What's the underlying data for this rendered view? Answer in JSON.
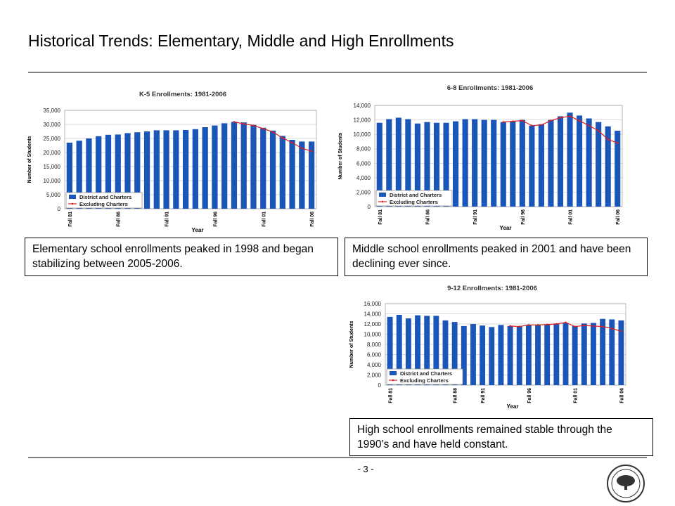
{
  "title": "Historical Trends: Elementary, Middle and High Enrollments",
  "captions": [
    "Elementary school enrollments peaked in 1998 and began stabilizing between 2005-2006.",
    "Middle school enrollments peaked in 2001 and have been declining ever since.",
    "High school enrollments remained stable through the 1990’s and have held constant."
  ],
  "page_number": "- 3 -",
  "chart_data": [
    {
      "type": "bar",
      "title": "K-5 Enrollments: 1981-2006",
      "x_label": "Year",
      "y_label": "Number of Students",
      "categories": [
        "Fall 81",
        null,
        null,
        null,
        null,
        "Fall 86",
        null,
        null,
        null,
        null,
        "Fall 91",
        null,
        null,
        null,
        null,
        "Fall 96",
        null,
        null,
        null,
        null,
        "Fall 01",
        null,
        null,
        null,
        null,
        "Fall 06"
      ],
      "series": [
        {
          "name": "District and Charters",
          "color": "#1a56b8",
          "type": "bar",
          "values": [
            23500,
            24200,
            25000,
            25800,
            26300,
            26400,
            26900,
            27200,
            27500,
            27900,
            27900,
            27900,
            28000,
            28300,
            29000,
            29600,
            30400,
            30900,
            30700,
            29800,
            28800,
            27800,
            25900,
            24500,
            23900,
            23900
          ]
        },
        {
          "name": "Excluding Charters",
          "color": "#d92020",
          "type": "line",
          "values": [
            null,
            null,
            null,
            null,
            null,
            null,
            null,
            null,
            null,
            null,
            null,
            null,
            null,
            null,
            null,
            null,
            null,
            30900,
            30200,
            29600,
            28500,
            27300,
            25200,
            23500,
            21500,
            20500
          ]
        }
      ],
      "ylim": [
        0,
        35000
      ],
      "yticks": [
        0,
        {
          "value": 5000,
          "label": "5,000"
        },
        {
          "value": 10000,
          "label": "10,000"
        },
        {
          "value": 15000,
          "label": "15,000"
        },
        {
          "value": 20000,
          "label": "20,000"
        },
        {
          "value": 25000,
          "label": "25,000"
        },
        {
          "value": 30000,
          "label": "30,000"
        },
        {
          "value": 35000,
          "label": "35,000"
        }
      ],
      "grid": true,
      "legend": "lower left"
    },
    {
      "type": "bar",
      "title": "6-8 Enrollments: 1981-2006",
      "x_label": "Year",
      "y_label": "Number of Students",
      "categories": [
        "Fall 81",
        null,
        null,
        null,
        null,
        "Fall 86",
        null,
        null,
        null,
        null,
        "Fall 91",
        null,
        null,
        null,
        null,
        "Fall 96",
        null,
        null,
        null,
        null,
        "Fall 01",
        null,
        null,
        null,
        null,
        "Fall 06"
      ],
      "series": [
        {
          "name": "District and Charters",
          "color": "#1a56b8",
          "type": "bar",
          "values": [
            11600,
            12100,
            12300,
            12100,
            11500,
            11700,
            11600,
            11600,
            11800,
            12100,
            12100,
            12000,
            12000,
            11700,
            11800,
            12000,
            11200,
            11400,
            12000,
            12500,
            13000,
            12600,
            12200,
            11700,
            11100,
            10500
          ]
        },
        {
          "name": "Excluding Charters",
          "color": "#d92020",
          "type": "line",
          "values": [
            null,
            null,
            null,
            null,
            null,
            null,
            null,
            null,
            null,
            null,
            null,
            null,
            null,
            11700,
            11800,
            11900,
            11200,
            11300,
            11900,
            12300,
            12500,
            11900,
            11200,
            10500,
            9300,
            8800
          ]
        }
      ],
      "ylim": [
        0,
        14000
      ],
      "yticks": [
        0,
        {
          "value": 2000,
          "label": "2,000"
        },
        {
          "value": 4000,
          "label": "4,000"
        },
        {
          "value": 6000,
          "label": "6,000"
        },
        {
          "value": 8000,
          "label": "8,000"
        },
        {
          "value": 10000,
          "label": "10,000"
        },
        {
          "value": 12000,
          "label": "12,000"
        },
        {
          "value": 14000,
          "label": "14,000"
        }
      ],
      "grid": true,
      "legend": "lower left"
    },
    {
      "type": "bar",
      "title": "9-12 Enrollments: 1981-2006",
      "x_label": "Year",
      "y_label": "Number of Students",
      "categories": [
        "Fall 81",
        null,
        null,
        null,
        null,
        null,
        null,
        "Fall 88",
        null,
        null,
        "Fall 91",
        null,
        null,
        null,
        null,
        "Fall 96",
        null,
        null,
        null,
        null,
        "Fall 01",
        null,
        null,
        null,
        null,
        "Fall 06"
      ],
      "series": [
        {
          "name": "District and Charters",
          "color": "#1a56b8",
          "type": "bar",
          "values": [
            13400,
            13800,
            13100,
            13700,
            13600,
            13600,
            12700,
            12400,
            11600,
            12000,
            11700,
            11400,
            11800,
            11600,
            11500,
            11800,
            11800,
            11900,
            12100,
            12200,
            11600,
            12100,
            12200,
            13000,
            12900,
            12700
          ]
        },
        {
          "name": "Excluding Charters",
          "color": "#d92020",
          "type": "line",
          "values": [
            null,
            null,
            null,
            null,
            null,
            null,
            null,
            null,
            null,
            null,
            null,
            null,
            null,
            11600,
            11500,
            11800,
            11800,
            11900,
            12000,
            12300,
            11500,
            11700,
            11600,
            11500,
            11100,
            10600
          ]
        }
      ],
      "ylim": [
        0,
        16000
      ],
      "yticks": [
        0,
        {
          "value": 2000,
          "label": "2,000"
        },
        {
          "value": 4000,
          "label": "4,000"
        },
        {
          "value": 6000,
          "label": "6,000"
        },
        {
          "value": 8000,
          "label": "8,000"
        },
        {
          "value": 10000,
          "label": "10,000"
        },
        {
          "value": 12000,
          "label": "12,000"
        },
        {
          "value": 14000,
          "label": "14,000"
        },
        {
          "value": 16000,
          "label": "16,000"
        }
      ],
      "grid": true,
      "legend": "lower left"
    }
  ]
}
